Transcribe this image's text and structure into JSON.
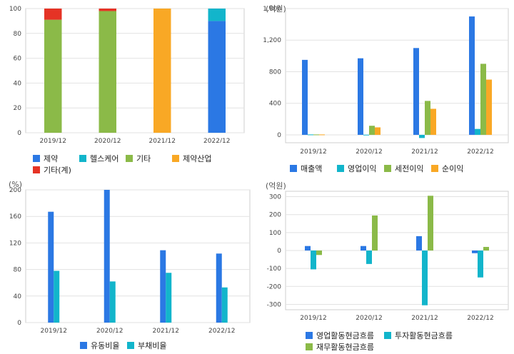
{
  "chart_data": [
    {
      "type": "bar",
      "stacked": true,
      "categories": [
        "2019/12",
        "2020/12",
        "2021/12",
        "2022/12"
      ],
      "ylim": [
        0,
        100
      ],
      "yticks": [
        "0",
        "20",
        "40",
        "60",
        "80",
        "100"
      ],
      "series": [
        {
          "name": "제약",
          "color": "#2b78e4",
          "values": [
            0,
            0,
            0,
            90
          ]
        },
        {
          "name": "헬스케어",
          "color": "#12b5cb",
          "values": [
            0,
            0,
            0,
            10
          ]
        },
        {
          "name": "기타",
          "color": "#8bba48",
          "values": [
            91,
            98,
            0,
            0
          ]
        },
        {
          "name": "제약산업",
          "color": "#f9a825",
          "values": [
            0,
            0,
            100,
            0
          ]
        },
        {
          "name": "기타(계)",
          "color": "#e53325",
          "values": [
            9,
            2,
            0,
            0
          ]
        }
      ]
    },
    {
      "type": "bar",
      "unit": "(억원)",
      "categories": [
        "2019/12",
        "2020/12",
        "2021/12",
        "2022/12"
      ],
      "ylim": [
        -100,
        1600
      ],
      "yticks": [
        "0",
        "400",
        "800",
        "1,200",
        "1,600"
      ],
      "series": [
        {
          "name": "매출액",
          "color": "#2b78e4",
          "values": [
            950,
            970,
            1100,
            1500
          ]
        },
        {
          "name": "영업이익",
          "color": "#12b5cb",
          "values": [
            5,
            2,
            -40,
            75
          ]
        },
        {
          "name": "세전이익",
          "color": "#8bba48",
          "values": [
            5,
            115,
            430,
            900
          ]
        },
        {
          "name": "순이익",
          "color": "#f9a825",
          "values": [
            5,
            95,
            330,
            700
          ]
        }
      ]
    },
    {
      "type": "bar",
      "unit": "(%)",
      "categories": [
        "2019/12",
        "2020/12",
        "2021/12",
        "2022/12"
      ],
      "ylim": [
        0,
        200
      ],
      "yticks": [
        "0",
        "40",
        "80",
        "120",
        "160",
        "200"
      ],
      "series": [
        {
          "name": "유동비율",
          "color": "#2b78e4",
          "values": [
            167,
            200,
            109,
            104
          ]
        },
        {
          "name": "부채비율",
          "color": "#12b5cb",
          "values": [
            78,
            62,
            75,
            53
          ]
        }
      ]
    },
    {
      "type": "bar",
      "unit": "(억원)",
      "categories": [
        "2019/12",
        "2020/12",
        "2021/12",
        "2022/12"
      ],
      "ylim": [
        -330,
        330
      ],
      "yticks": [
        "-300",
        "-200",
        "-100",
        "0",
        "100",
        "200",
        "300"
      ],
      "series": [
        {
          "name": "영업활동현금흐름",
          "color": "#2b78e4",
          "values": [
            25,
            25,
            80,
            -15
          ]
        },
        {
          "name": "투자활동현금흐름",
          "color": "#12b5cb",
          "values": [
            -105,
            -75,
            -305,
            -150
          ]
        },
        {
          "name": "재무활동현금흐름",
          "color": "#8bba48",
          "values": [
            -25,
            195,
            305,
            20
          ]
        }
      ]
    }
  ]
}
